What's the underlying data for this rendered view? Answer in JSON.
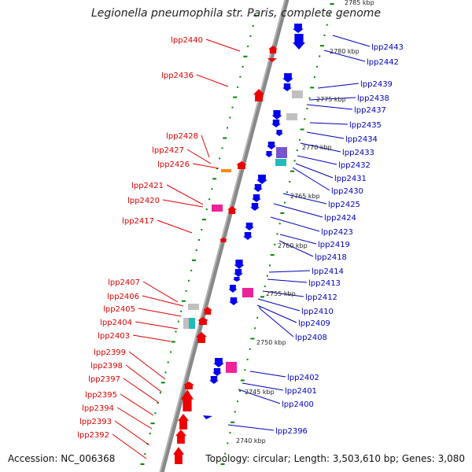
{
  "title": "Legionella pneumophila str. Paris, complete genome",
  "accession": "Accession: NC_006368",
  "summary": "Topology: circular; Length: 3,503,610 bp; Genes: 3,080",
  "colors": {
    "reverse_gene": "#ee0000",
    "forward_gene": "#0000ee",
    "left_label": "#dd0000",
    "right_label": "#0000bb",
    "backbone": "#888888",
    "tick": "#008800",
    "pseudo": "#c0c0c0",
    "magenta": "#ee2299",
    "purple": "#7755cc",
    "cyan": "#22bbbb",
    "orange": "#ff8800"
  },
  "scale_labels": [
    "2785 kbp",
    "2780 kbp",
    "2775 kbp",
    "2770 kbp",
    "2765 kbp",
    "2760 kbp",
    "2755 kbp",
    "2750 kbp",
    "2745 kbp",
    "2740 kbp"
  ],
  "left_genes": [
    "lpp2440",
    "lpp2436",
    "lpp2428",
    "lpp2427",
    "lpp2426",
    "lpp2421",
    "lpp2420",
    "lpp2417",
    "lpp2407",
    "lpp2406",
    "lpp2405",
    "lpp2404",
    "lpp2403",
    "lpp2399",
    "lpp2398",
    "lpp2397",
    "lpp2395",
    "lpp2394",
    "lpp2393",
    "lpp2392"
  ],
  "right_genes": [
    "lpp2443",
    "lpp2442",
    "lpp2439",
    "lpp2438",
    "lpp2437",
    "lpp2435",
    "lpp2434",
    "lpp2433",
    "lpp2432",
    "lpp2431",
    "lpp2430",
    "lpp2425",
    "lpp2424",
    "lpp2423",
    "lpp2419",
    "lpp2418",
    "lpp2414",
    "lpp2413",
    "lpp2412",
    "lpp2410",
    "lpp2409",
    "lpp2408",
    "lpp2402",
    "lpp2401",
    "lpp2400",
    "lpp2396"
  ]
}
